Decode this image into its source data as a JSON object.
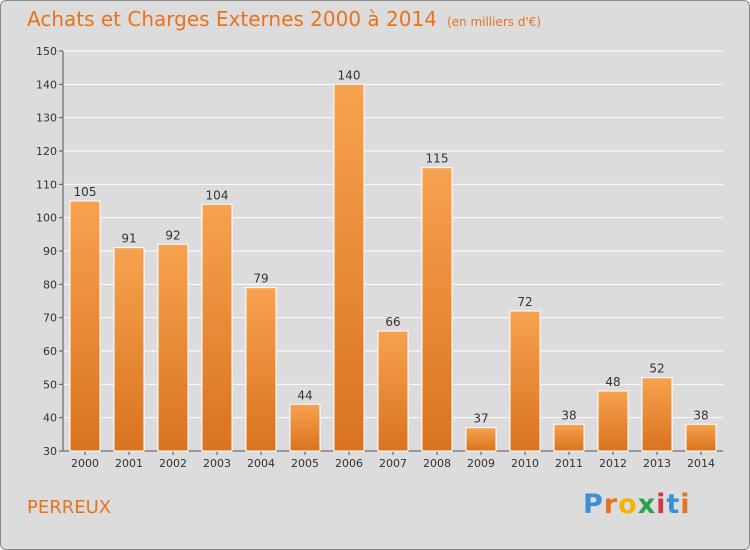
{
  "header": {
    "title": "Achats et Charges Externes 2000 à 2014",
    "unit": "(en milliers d'€)"
  },
  "footer": {
    "commune": "PERREUX",
    "logo_letters": [
      "P",
      "r",
      "o",
      "x",
      "i",
      "t",
      "i"
    ],
    "logo_colors": [
      "#3a8fd6",
      "#e8731e",
      "#f4b400",
      "#2e9e4f",
      "#d6334e",
      "#3a8fd6",
      "#e8731e"
    ]
  },
  "colors": {
    "accent": "#e8731e",
    "bar_light": "#f7a24f",
    "bar_dark": "#d9731f",
    "background": "#dcdcdc",
    "grid": "#ffffff"
  },
  "chart_data": {
    "type": "bar",
    "categories": [
      "2000",
      "2001",
      "2002",
      "2003",
      "2004",
      "2005",
      "2006",
      "2007",
      "2008",
      "2009",
      "2010",
      "2011",
      "2012",
      "2013",
      "2014"
    ],
    "values": [
      105,
      91,
      92,
      104,
      79,
      44,
      140,
      66,
      115,
      37,
      72,
      38,
      48,
      52,
      38
    ],
    "title": "Achats et Charges Externes 2000 à 2014",
    "xlabel": "",
    "ylabel": "",
    "ylim": [
      30,
      150
    ],
    "yticks": [
      30,
      40,
      50,
      60,
      70,
      80,
      90,
      100,
      110,
      120,
      130,
      140,
      150
    ],
    "grid": true,
    "legend": "none"
  }
}
